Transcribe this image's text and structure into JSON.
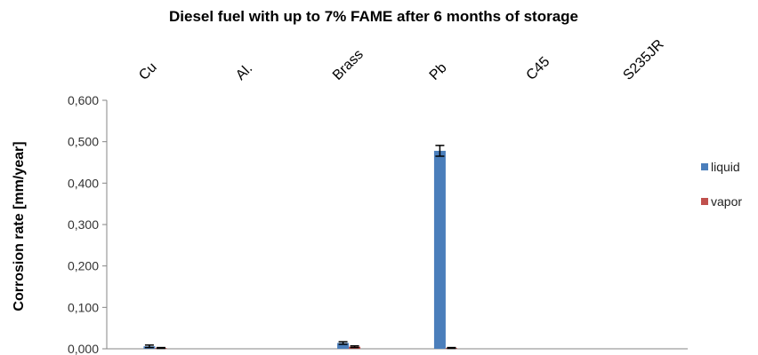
{
  "chart_data": {
    "type": "bar",
    "title": "Diesel fuel with up to 7% FAME after 6 months of storage",
    "xlabel": "",
    "ylabel": "Corrosion rate [mm/year]",
    "categories": [
      "Cu",
      "Al.",
      "Brass",
      "Pb",
      "C45",
      "S235JR"
    ],
    "ylim": [
      0,
      0.6
    ],
    "yticks": [
      "0,000",
      "0,100",
      "0,200",
      "0,300",
      "0,400",
      "0,500",
      "0,600"
    ],
    "series": [
      {
        "name": "liquid",
        "color": "#4a7ebb",
        "values": [
          0.006,
          0.0,
          0.014,
          0.478,
          0.0,
          0.0
        ],
        "errors": [
          0.003,
          0.0,
          0.003,
          0.013,
          0.0,
          0.0
        ]
      },
      {
        "name": "vapor",
        "color": "#c0504d",
        "values": [
          0.002,
          0.0,
          0.005,
          0.002,
          0.0,
          0.0
        ],
        "errors": [
          0.001,
          0.0,
          0.002,
          0.001,
          0.0,
          0.0
        ]
      }
    ],
    "grid": false,
    "legend": "right",
    "category_axis_position": "top"
  }
}
